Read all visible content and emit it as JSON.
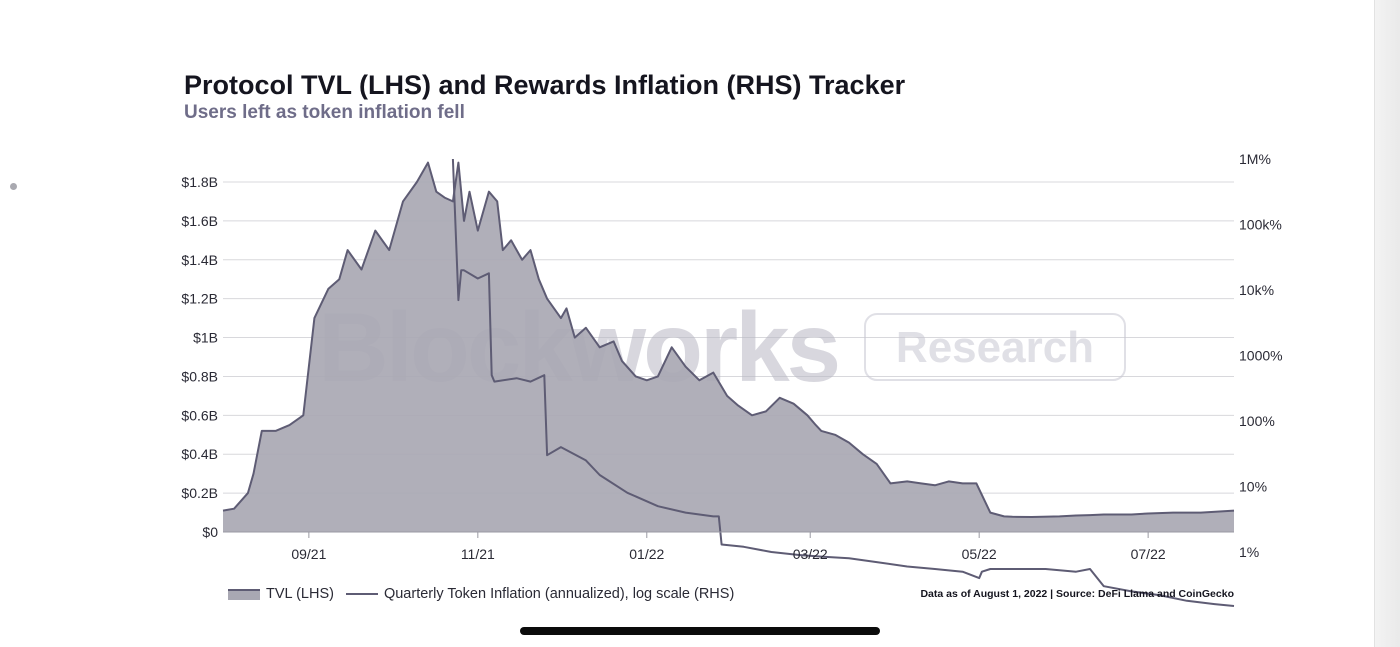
{
  "title": "Protocol TVL (LHS) and Rewards Inflation (RHS) Tracker",
  "subtitle": "Users left as token inflation fell",
  "watermark": {
    "brand": "Blockworks",
    "badge": "Research"
  },
  "legend": {
    "tvl": "TVL (LHS)",
    "inflation": "Quarterly Token Inflation (annualized), log scale (RHS)"
  },
  "source": "Data as of August 1, 2022 | Source: DeFi Llama and CoinGecko",
  "colors": {
    "area_fill": "#a9a8b3",
    "area_line": "#5e5c74",
    "inflation_line": "#5e5c74",
    "grid": "#d8d8dc",
    "text": "#15151f",
    "subtitle": "#6f6d89"
  },
  "chart_data": {
    "type": "area",
    "x_ticks": [
      "09/21",
      "11/21",
      "01/22",
      "03/22",
      "05/22",
      "07/22"
    ],
    "left_axis": {
      "ticks": [
        "$0",
        "$0.2B",
        "$0.4B",
        "$0.6B",
        "$0.8B",
        "$1B",
        "$1.2B",
        "$1.4B",
        "$1.6B",
        "$1.8B"
      ],
      "ylim": [
        0,
        1.8
      ],
      "unit": "B USD"
    },
    "right_axis": {
      "ticks": [
        "1%",
        "10%",
        "100%",
        "1000%",
        "10k%",
        "100k%",
        "1M%"
      ],
      "scale": "log",
      "ylim_exponent": [
        0,
        6
      ]
    },
    "grid": true,
    "legend_position": "bottom-left",
    "series": [
      {
        "name": "TVL (LHS)",
        "kind": "area",
        "axis": "left",
        "x": [
          "08/01/21",
          "08/05/21",
          "08/10/21",
          "08/12/21",
          "08/15/21",
          "08/20/21",
          "08/25/21",
          "08/30/21",
          "09/03/21",
          "09/08/21",
          "09/12/21",
          "09/15/21",
          "09/20/21",
          "09/25/21",
          "09/30/21",
          "10/05/21",
          "10/10/21",
          "10/14/21",
          "10/17/21",
          "10/20/21",
          "10/23/21",
          "10/25/21",
          "10/27/21",
          "10/29/21",
          "11/01/21",
          "11/05/21",
          "11/08/21",
          "11/10/21",
          "11/13/21",
          "11/17/21",
          "11/20/21",
          "11/23/21",
          "11/26/21",
          "12/01/21",
          "12/03/21",
          "12/06/21",
          "12/10/21",
          "12/15/21",
          "12/20/21",
          "12/23/21",
          "12/28/21",
          "01/01/22",
          "01/05/22",
          "01/10/22",
          "01/15/22",
          "01/20/22",
          "01/25/22",
          "01/30/22",
          "02/03/22",
          "02/08/22",
          "02/13/22",
          "02/18/22",
          "02/23/22",
          "02/28/22",
          "03/03/22",
          "03/05/22",
          "03/10/22",
          "03/15/22",
          "03/20/22",
          "03/25/22",
          "03/30/22",
          "04/05/22",
          "04/10/22",
          "04/15/22",
          "04/20/22",
          "04/25/22",
          "04/30/22",
          "05/05/22",
          "05/10/22",
          "05/13/22",
          "05/20/22",
          "05/30/22",
          "06/05/22",
          "06/10/22",
          "06/15/22",
          "06/20/22",
          "06/25/22",
          "07/01/22",
          "07/10/22",
          "07/20/22",
          "08/01/22"
        ],
        "values": [
          0.11,
          0.12,
          0.2,
          0.3,
          0.52,
          0.52,
          0.55,
          0.6,
          1.1,
          1.25,
          1.3,
          1.45,
          1.35,
          1.55,
          1.45,
          1.7,
          1.8,
          1.9,
          1.75,
          1.72,
          1.7,
          1.9,
          1.6,
          1.75,
          1.55,
          1.75,
          1.7,
          1.45,
          1.5,
          1.4,
          1.45,
          1.3,
          1.2,
          1.1,
          1.15,
          1.0,
          1.05,
          0.95,
          0.98,
          0.88,
          0.8,
          0.78,
          0.8,
          0.95,
          0.85,
          0.78,
          0.82,
          0.7,
          0.65,
          0.6,
          0.62,
          0.69,
          0.66,
          0.6,
          0.55,
          0.52,
          0.5,
          0.46,
          0.4,
          0.35,
          0.25,
          0.26,
          0.25,
          0.24,
          0.26,
          0.25,
          0.25,
          0.1,
          0.08,
          0.078,
          0.077,
          0.08,
          0.085,
          0.087,
          0.09,
          0.09,
          0.09,
          0.095,
          0.1,
          0.1,
          0.11
        ]
      },
      {
        "name": "Quarterly Token Inflation (annualized), log scale (RHS)",
        "kind": "line",
        "axis": "right",
        "scale": "log",
        "x": [
          "10/23/21",
          "10/25/21",
          "10/26/21",
          "10/27/21",
          "11/01/21",
          "11/05/21",
          "11/06/21",
          "11/07/21",
          "11/15/21",
          "11/20/21",
          "11/25/21",
          "11/26/21",
          "12/01/21",
          "12/10/21",
          "12/15/21",
          "12/25/21",
          "01/05/22",
          "01/15/22",
          "01/25/22",
          "01/27/22",
          "01/28/22",
          "02/05/22",
          "02/15/22",
          "02/25/22",
          "03/05/22",
          "03/15/22",
          "03/25/22",
          "04/05/22",
          "04/15/22",
          "04/25/22",
          "05/01/22",
          "05/02/22",
          "05/05/22",
          "05/15/22",
          "05/25/22",
          "06/05/22",
          "06/10/22",
          "06/15/22",
          "06/25/22",
          "07/05/22",
          "07/15/22",
          "07/25/22",
          "08/01/22"
        ],
        "values": [
          1000000,
          7000,
          20000,
          20000,
          15000,
          18000,
          500,
          400,
          450,
          400,
          500,
          30,
          40,
          25,
          15,
          8,
          5,
          4,
          3.5,
          3.5,
          1.3,
          1.2,
          1.0,
          0.9,
          0.85,
          0.8,
          0.7,
          0.6,
          0.55,
          0.5,
          0.4,
          0.5,
          0.55,
          0.55,
          0.55,
          0.5,
          0.55,
          0.3,
          0.25,
          0.22,
          0.18,
          0.16,
          0.15
        ]
      }
    ]
  }
}
